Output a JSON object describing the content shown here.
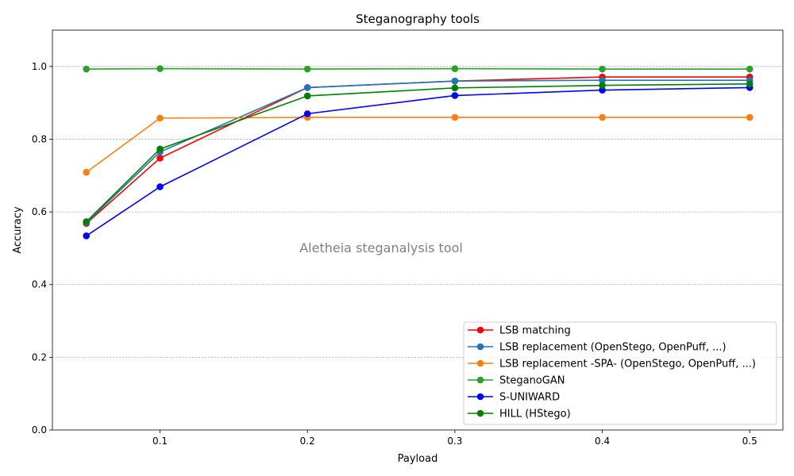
{
  "chart_data": {
    "type": "line",
    "title": "Steganography tools",
    "xlabel": "Payload",
    "ylabel": "Accuracy",
    "xlim": [
      0.027,
      0.5225
    ],
    "ylim": [
      0.0,
      1.1
    ],
    "xticks": [
      0.1,
      0.2,
      0.3,
      0.4,
      0.5
    ],
    "xtick_labels": [
      "0.1",
      "0.2",
      "0.3",
      "0.4",
      "0.5"
    ],
    "yticks": [
      0.0,
      0.2,
      0.4,
      0.6,
      0.8,
      1.0
    ],
    "ytick_labels": [
      "0.0",
      "0.2",
      "0.4",
      "0.6",
      "0.8",
      "1.0"
    ],
    "grid": "horizontal dashed",
    "legend_position": "lower right",
    "annotation": {
      "text": "Aletheia steganalysis tool",
      "x": 0.25,
      "y": 0.5
    },
    "x": [
      0.05,
      0.1,
      0.2,
      0.3,
      0.4,
      0.5
    ],
    "series": [
      {
        "name": "LSB matching",
        "color": "#ff0000",
        "values": [
          0.568,
          0.748,
          0.942,
          0.96,
          0.971,
          0.971
        ]
      },
      {
        "name": "LSB replacement (OpenStego, OpenPuff, ...)",
        "color": "#1f77b4",
        "values": [
          0.57,
          0.765,
          0.942,
          0.96,
          0.962,
          0.962
        ]
      },
      {
        "name": "LSB replacement -SPA- (OpenStego, OpenPuff, ...)",
        "color": "#ff7f0e",
        "values": [
          0.709,
          0.858,
          0.86,
          0.86,
          0.86,
          0.86
        ]
      },
      {
        "name": "SteganoGAN",
        "color": "#2ca02c",
        "values": [
          0.993,
          0.994,
          0.993,
          0.994,
          0.993,
          0.993
        ]
      },
      {
        "name": "S-UNIWARD",
        "color": "#0000ff",
        "values": [
          0.534,
          0.669,
          0.87,
          0.92,
          0.935,
          0.942
        ]
      },
      {
        "name": "HILL (HStego)",
        "color": "#008000",
        "values": [
          0.573,
          0.773,
          0.919,
          0.941,
          0.948,
          0.952
        ]
      }
    ]
  }
}
